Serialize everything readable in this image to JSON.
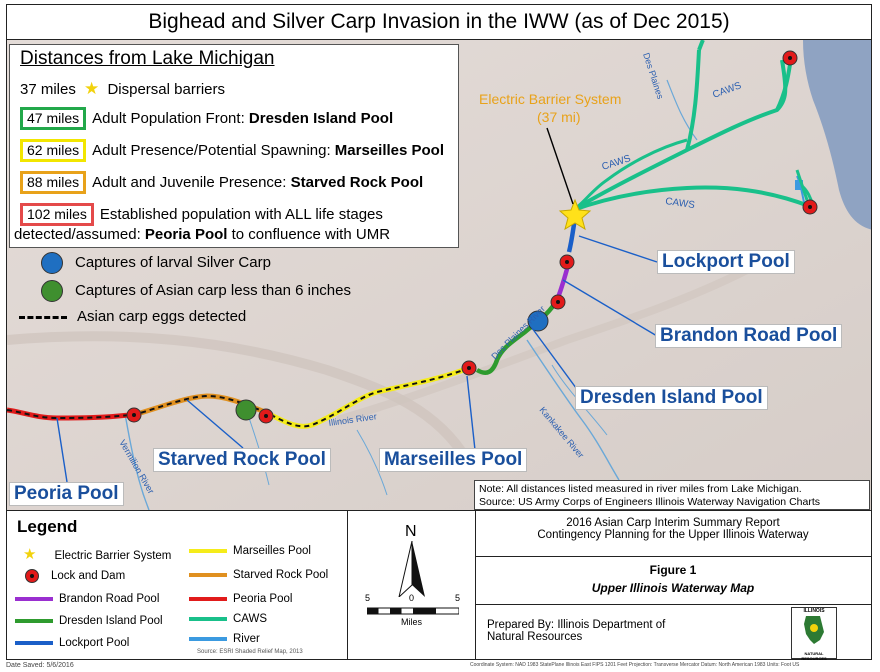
{
  "title": "Bighead and Silver Carp Invasion in the IWW (as of Dec 2015)",
  "distances": {
    "heading": "Distances from Lake Michigan",
    "barrier_miles": "37 miles",
    "barrier_label": "Dispersal barriers",
    "rows": [
      {
        "miles": "47 miles",
        "color": "#22a84a",
        "text": "Adult Population Front: ",
        "pool": "Dresden Island Pool"
      },
      {
        "miles": "62 miles",
        "color": "#f2e600",
        "text": "Adult Presence/Potential Spawning: ",
        "pool": "Marseilles Pool"
      },
      {
        "miles": "88 miles",
        "color": "#e8a21a",
        "text": "Adult and Juvenile Presence: ",
        "pool": "Starved Rock Pool"
      },
      {
        "miles": "102 miles",
        "color": "#e44a4a",
        "text": "Established population with ALL life stages",
        "text2": "detected/assumed: ",
        "pool": "Peoria Pool",
        "tail": " to confluence with UMR"
      }
    ],
    "larval": "Captures of larval Silver Carp",
    "small_carp": "Captures of Asian carp less than 6 inches",
    "eggs": "Asian carp eggs detected",
    "larval_color": "#1f6fc1",
    "small_carp_color": "#3f8f2f"
  },
  "map": {
    "electric_barrier_label": "Electric Barrier System",
    "electric_barrier_miles": "(37 mi)",
    "caws": "CAWS",
    "des_plaines_top": "Des Plaines",
    "des_plaines_river": "Des Plaines River",
    "illinois_river": "Illinois River",
    "kankakee_river": "Kankakee River",
    "vermilion_river": "Vermilion River",
    "pools": {
      "lockport": "Lockport Pool",
      "brandon": "Brandon Road Pool",
      "dresden": "Dresden Island Pool",
      "marseilles": "Marseilles Pool",
      "starved": "Starved Rock Pool",
      "peoria": "Peoria Pool"
    },
    "colors": {
      "lake": "#8fa3c2",
      "land": "#ddd4cf",
      "caws": "#19c08a",
      "lockport": "#1a5fc8",
      "brandon": "#9a2fd0",
      "dresden": "#2e9b2e",
      "marseilles": "#f5ec1a",
      "starved": "#e0901f",
      "peoria": "#e11b1b"
    }
  },
  "note": {
    "line1": "Note:  All distances listed measured in river miles from Lake Michigan.",
    "line2": "Source: US Army Corps of Engineers Illinois Waterway Navigation Charts"
  },
  "legend": {
    "title": "Legend",
    "items": [
      {
        "label": "Electric Barrier System",
        "kind": "star"
      },
      {
        "label": "Lock and Dam",
        "kind": "dot"
      },
      {
        "label": "Brandon Road Pool",
        "kind": "line",
        "color": "#9a2fd0"
      },
      {
        "label": "Dresden Island Pool",
        "kind": "line",
        "color": "#2e9b2e"
      },
      {
        "label": "Lockport Pool",
        "kind": "line",
        "color": "#1a5fc8"
      },
      {
        "label": "Marseilles Pool",
        "kind": "line",
        "color": "#f5ec1a"
      },
      {
        "label": "Starved Rock Pool",
        "kind": "line",
        "color": "#e0901f"
      },
      {
        "label": "Peoria Pool",
        "kind": "line",
        "color": "#e11b1b"
      },
      {
        "label": "CAWS",
        "kind": "line",
        "color": "#19c08a"
      },
      {
        "label": "River",
        "kind": "line",
        "color": "#3b9ae0"
      }
    ],
    "source": "Source:  ESRI Shaded Relief Map, 2013"
  },
  "north": {
    "letter": "N",
    "scale_left": "5",
    "scale_mid": "0",
    "scale_right": "5",
    "units": "Miles"
  },
  "report": {
    "line1": "2016 Asian Carp Interim Summary Report",
    "line2": "Contingency Planning for the Upper Illinois Waterway",
    "figure": "Figure 1",
    "figure_title": "Upper Illinois Waterway Map",
    "prepared_1": "Prepared By: Illinois Department of",
    "prepared_2": "Natural Resources",
    "logo_top": "ILLINOIS",
    "logo_bottom": "NATURAL RESOURCES"
  },
  "footer": {
    "date": "Date Saved: 5/6/2016",
    "coords": "Coordinate System: NAD 1983 StatePlane Illinois East FIPS 1201 Feet   Projection: Transverse Mercator   Datum: North American 1983   Units: Foot US"
  }
}
